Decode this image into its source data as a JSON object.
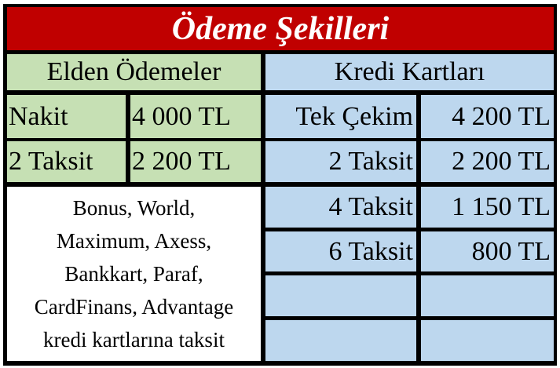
{
  "title": "Ödeme Şekilleri",
  "colors": {
    "title_bg": "#c00000",
    "cash_bg": "#c6e0b4",
    "card_bg": "#bdd7ee"
  },
  "cash": {
    "header": "Elden Ödemeler",
    "rows": [
      {
        "label": "Nakit",
        "amount": "4 000 TL"
      },
      {
        "label": "2 Taksit",
        "amount": "2 200 TL"
      }
    ],
    "note_lines": [
      "Bonus, World,",
      "Maximum, Axess,",
      "Bankkart, Paraf,",
      "CardFinans, Advantage",
      "kredi kartlarına taksit"
    ]
  },
  "card": {
    "header": "Kredi Kartları",
    "rows": [
      {
        "label": "Tek Çekim",
        "amount": "4 200 TL"
      },
      {
        "label": "2 Taksit",
        "amount": "2 200 TL"
      },
      {
        "label": "4 Taksit",
        "amount": "1 150 TL"
      },
      {
        "label": "6 Taksit",
        "amount": "800 TL"
      },
      {
        "label": "",
        "amount": ""
      },
      {
        "label": "",
        "amount": ""
      }
    ]
  }
}
